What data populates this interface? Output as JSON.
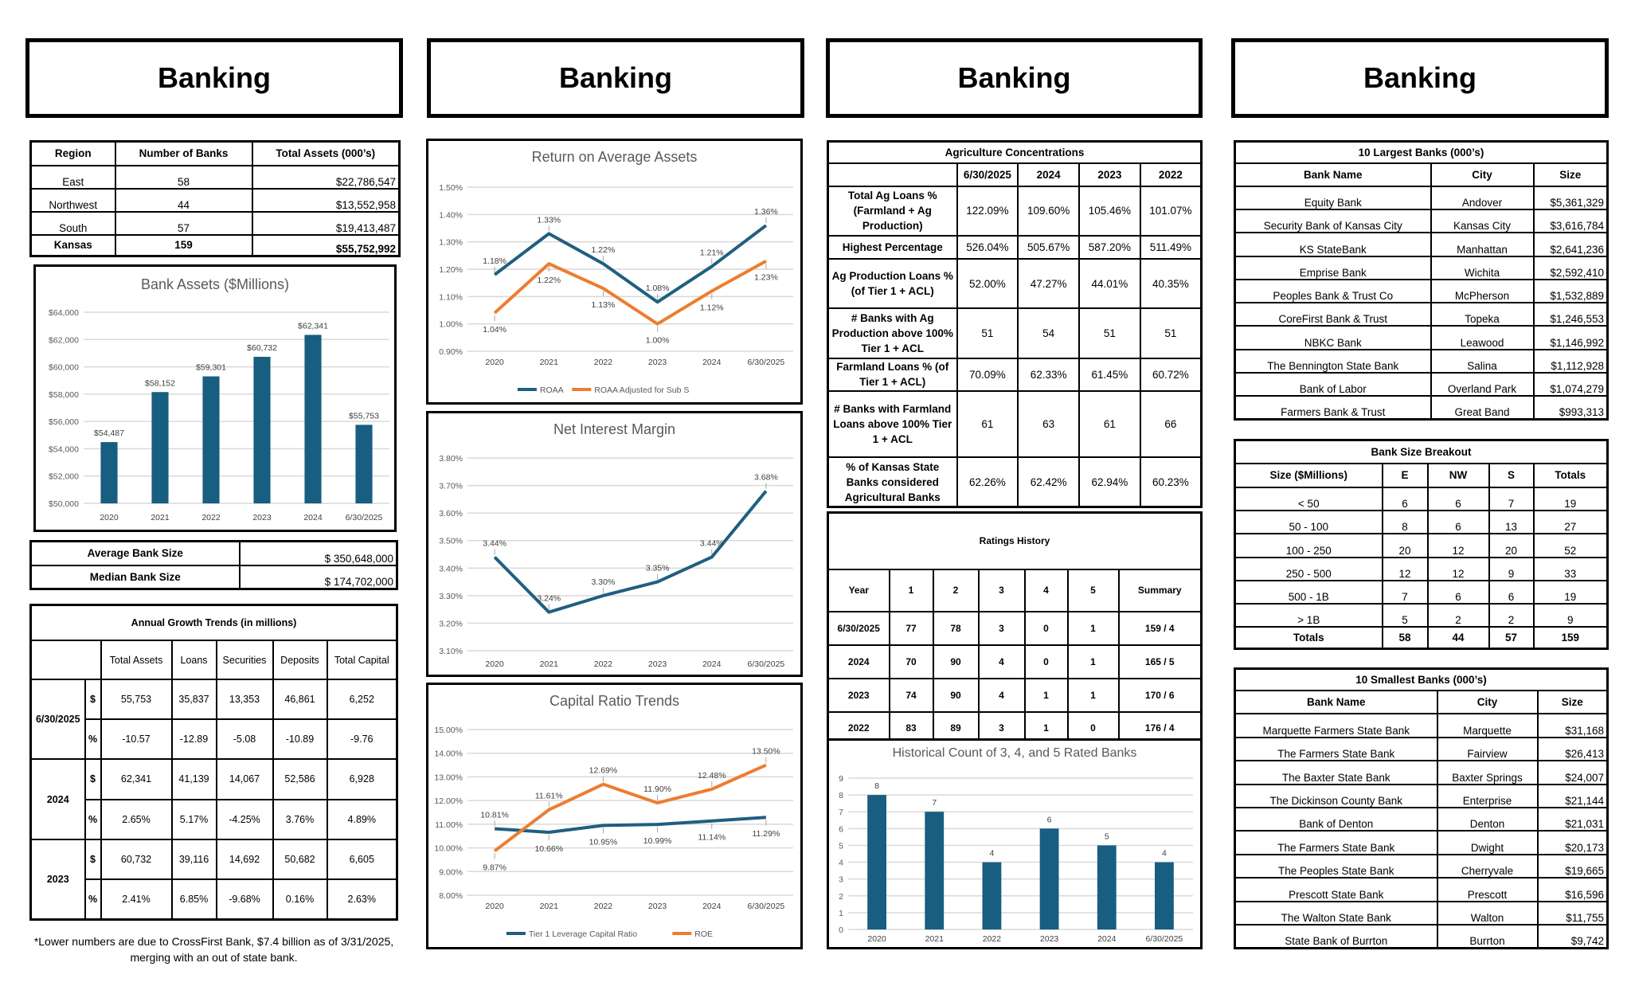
{
  "headers": [
    "Banking",
    "Banking",
    "Banking",
    "Banking"
  ],
  "region_table": {
    "columns": [
      "Region",
      "Number of Banks",
      "Total Assets (000’s)"
    ],
    "rows": [
      [
        "East",
        "58",
        "$22,786,547"
      ],
      [
        "Northwest",
        "44",
        "$13,552,958"
      ],
      [
        "South",
        "57",
        "$19,413,487"
      ]
    ],
    "total": [
      "Kansas",
      "159",
      "$55,752,992"
    ]
  },
  "bank_size_summary": {
    "average_label": "Average Bank Size",
    "average_value": "$ 350,648,000",
    "median_label": "Median Bank Size",
    "median_value": "$ 174,702,000"
  },
  "growth_trends": {
    "title": "Annual Growth Trends (in millions)",
    "columns": [
      "Total Assets",
      "Loans",
      "Securities",
      "Deposits",
      "Total Capital"
    ],
    "dollar_symbol": "$",
    "pct_symbol": "%",
    "periods": [
      {
        "label": "6/30/2025",
        "dollars": [
          "55,753",
          "35,837",
          "13,353",
          "46,861",
          "6,252"
        ],
        "percent": [
          "-10.57",
          "-12.89",
          "-5.08",
          "-10.89",
          "-9.76"
        ]
      },
      {
        "label": "2024",
        "dollars": [
          "62,341",
          "41,139",
          "14,067",
          "52,586",
          "6,928"
        ],
        "percent": [
          "2.65%",
          "5.17%",
          "-4.25%",
          "3.76%",
          "4.89%"
        ]
      },
      {
        "label": "2023",
        "dollars": [
          "60,732",
          "39,116",
          "14,692",
          "50,682",
          "6,605"
        ],
        "percent": [
          "2.41%",
          "6.85%",
          "-9.68%",
          "0.16%",
          "2.63%"
        ]
      }
    ]
  },
  "footnote": "*Lower numbers are due to CrossFirst Bank, $7.4 billion as of 3/31/2025, merging with an out of state bank.",
  "ag_concentrations": {
    "title": "Agriculture Concentrations",
    "columns": [
      "",
      "6/30/2025",
      "2024",
      "2023",
      "2022"
    ],
    "rows": [
      {
        "label": "Total Ag Loans % (Farmland + Ag Production)",
        "values": [
          "122.09%",
          "109.60%",
          "105.46%",
          "101.07%"
        ]
      },
      {
        "label": "Highest Percentage",
        "values": [
          "526.04%",
          "505.67%",
          "587.20%",
          "511.49%"
        ]
      },
      {
        "label": "Ag Production Loans % (of Tier 1 + ACL)",
        "values": [
          "52.00%",
          "47.27%",
          "44.01%",
          "40.35%"
        ]
      },
      {
        "label": "# Banks with Ag Production above 100% Tier 1 + ACL",
        "values": [
          "51",
          "54",
          "51",
          "51"
        ]
      },
      {
        "label": "Farmland Loans % (of Tier 1 + ACL)",
        "values": [
          "70.09%",
          "62.33%",
          "61.45%",
          "60.72%"
        ]
      },
      {
        "label": "# Banks with Farmland Loans above 100% Tier 1 + ACL",
        "values": [
          "61",
          "63",
          "61",
          "66"
        ]
      },
      {
        "label": "% of Kansas State Banks considered Agricultural Banks",
        "values": [
          "62.26%",
          "62.42%",
          "62.94%",
          "60.23%"
        ]
      }
    ]
  },
  "ratings_history": {
    "title": "Ratings History",
    "columns": [
      "Year",
      "1",
      "2",
      "3",
      "4",
      "5",
      "Summary"
    ],
    "rows": [
      [
        "6/30/2025",
        "77",
        "78",
        "3",
        "0",
        "1",
        "159 / 4"
      ],
      [
        "2024",
        "70",
        "90",
        "4",
        "0",
        "1",
        "165 / 5"
      ],
      [
        "2023",
        "74",
        "90",
        "4",
        "1",
        "1",
        "170 / 6"
      ],
      [
        "2022",
        "83",
        "89",
        "3",
        "1",
        "0",
        "176 / 4"
      ]
    ]
  },
  "largest_banks": {
    "title": "10 Largest Banks (000’s)",
    "columns": [
      "Bank Name",
      "City",
      "Size"
    ],
    "rows": [
      [
        "Equity Bank",
        "Andover",
        "$5,361,329"
      ],
      [
        "Security Bank of Kansas City",
        "Kansas City",
        "$3,616,784"
      ],
      [
        "KS StateBank",
        "Manhattan",
        "$2,641,236"
      ],
      [
        "Emprise Bank",
        "Wichita",
        "$2,592,410"
      ],
      [
        "Peoples Bank & Trust Co",
        "McPherson",
        "$1,532,889"
      ],
      [
        "CoreFirst Bank & Trust",
        "Topeka",
        "$1,246,553"
      ],
      [
        "NBKC Bank",
        "Leawood",
        "$1,146,992"
      ],
      [
        "The Bennington State Bank",
        "Salina",
        "$1,112,928"
      ],
      [
        "Bank of Labor",
        "Overland Park",
        "$1,074,279"
      ],
      [
        "Farmers Bank & Trust",
        "Great Band",
        "$993,313"
      ]
    ]
  },
  "size_breakout": {
    "title": "Bank Size Breakout",
    "columns": [
      "Size ($Millions)",
      "E",
      "NW",
      "S",
      "Totals"
    ],
    "rows": [
      [
        "< 50",
        "6",
        "6",
        "7",
        "19"
      ],
      [
        "50 - 100",
        "8",
        "6",
        "13",
        "27"
      ],
      [
        "100 - 250",
        "20",
        "12",
        "20",
        "52"
      ],
      [
        "250 - 500",
        "12",
        "12",
        "9",
        "33"
      ],
      [
        "500 - 1B",
        "7",
        "6",
        "6",
        "19"
      ],
      [
        "> 1B",
        "5",
        "2",
        "2",
        "9"
      ]
    ],
    "totals": [
      "Totals",
      "58",
      "44",
      "57",
      "159"
    ]
  },
  "smallest_banks": {
    "title": "10 Smallest Banks (000’s)",
    "columns": [
      "Bank Name",
      "City",
      "Size"
    ],
    "rows": [
      [
        "Marquette Farmers State Bank",
        "Marquette",
        "$31,168"
      ],
      [
        "The Farmers State Bank",
        "Fairview",
        "$26,413"
      ],
      [
        "The Baxter State Bank",
        "Baxter Springs",
        "$24,007"
      ],
      [
        "The Dickinson County Bank",
        "Enterprise",
        "$21,144"
      ],
      [
        "Bank of Denton",
        "Denton",
        "$21,031"
      ],
      [
        "The Farmers State Bank",
        "Dwight",
        "$20,173"
      ],
      [
        "The Peoples State Bank",
        "Cherryvale",
        "$19,665"
      ],
      [
        "Prescott State Bank",
        "Prescott",
        "$16,596"
      ],
      [
        "The Walton State Bank",
        "Walton",
        "$11,755"
      ],
      [
        "State Bank of Burrton",
        "Burrton",
        "$9,742"
      ]
    ]
  },
  "chart_data": [
    {
      "type": "bar",
      "title": "Bank Assets ($Millions)",
      "categories": [
        "2020",
        "2021",
        "2022",
        "2023",
        "2024",
        "6/30/2025"
      ],
      "values": [
        54487,
        58152,
        59301,
        60732,
        62341,
        55753
      ],
      "data_labels": [
        "$54,487",
        "$58,152",
        "$59,301",
        "$60,732",
        "$62,341",
        "$55,753"
      ],
      "ylim": [
        50000,
        64000
      ],
      "y_tick_labels": [
        "$50,000",
        "$52,000",
        "$54,000",
        "$56,000",
        "$58,000",
        "$60,000",
        "$62,000",
        "$64,000"
      ],
      "grid": true,
      "color": "#175e80"
    },
    {
      "type": "line",
      "title": "Return on Average Assets",
      "categories": [
        "2020",
        "2021",
        "2022",
        "2023",
        "2024",
        "6/30/2025"
      ],
      "ylim": [
        0.9,
        1.5
      ],
      "y_tick_labels": [
        "0.90%",
        "1.00%",
        "1.10%",
        "1.20%",
        "1.30%",
        "1.40%",
        "1.50%"
      ],
      "grid": true,
      "legend": "bottom",
      "series": [
        {
          "name": "ROAA",
          "values": [
            1.18,
            1.33,
            1.22,
            1.08,
            1.21,
            1.36
          ],
          "data_labels": [
            "1.18%",
            "1.33%",
            "1.22%",
            "1.08%",
            "1.21%",
            "1.36%"
          ],
          "color": "#1f5f80"
        },
        {
          "name": "ROAA Adjusted for Sub S",
          "values": [
            1.04,
            1.22,
            1.13,
            1.0,
            1.12,
            1.23
          ],
          "data_labels": [
            "1.04%",
            "1.22%",
            "1.13%",
            "1.00%",
            "1.12%",
            "1.23%"
          ],
          "color": "#ed7d31"
        }
      ]
    },
    {
      "type": "line",
      "title": "Net Interest Margin",
      "categories": [
        "2020",
        "2021",
        "2022",
        "2023",
        "2024",
        "6/30/2025"
      ],
      "ylim": [
        3.1,
        3.8
      ],
      "y_tick_labels": [
        "3.10%",
        "3.20%",
        "3.30%",
        "3.40%",
        "3.50%",
        "3.60%",
        "3.70%",
        "3.80%"
      ],
      "grid": true,
      "series": [
        {
          "values": [
            3.44,
            3.24,
            3.3,
            3.35,
            3.44,
            3.68
          ],
          "data_labels": [
            "3.44%",
            "3.24%",
            "3.30%",
            "3.35%",
            "3.44%",
            "3.68%"
          ],
          "color": "#1f5f80"
        }
      ]
    },
    {
      "type": "line",
      "title": "Capital Ratio Trends",
      "categories": [
        "2020",
        "2021",
        "2022",
        "2023",
        "2024",
        "6/30/2025"
      ],
      "ylim": [
        8,
        15
      ],
      "y_tick_labels": [
        "8.00%",
        "9.00%",
        "10.00%",
        "11.00%",
        "12.00%",
        "13.00%",
        "14.00%",
        "15.00%"
      ],
      "grid": true,
      "legend": "bottom",
      "series": [
        {
          "name": "Tier 1 Leverage Capital Ratio",
          "values": [
            10.81,
            10.66,
            10.95,
            10.99,
            11.14,
            11.29
          ],
          "data_labels": [
            "10.81%",
            "10.66%",
            "10.95%",
            "10.99%",
            "11.14%",
            "11.29%"
          ],
          "color": "#1f5f80"
        },
        {
          "name": "ROE",
          "values": [
            9.87,
            11.61,
            12.69,
            11.9,
            12.48,
            13.5
          ],
          "data_labels": [
            "9.87%",
            "11.61%",
            "12.69%",
            "11.90%",
            "12.48%",
            "13.50%"
          ],
          "color": "#ed7d31"
        }
      ]
    },
    {
      "type": "bar",
      "title": "Historical Count of 3, 4, and 5 Rated Banks",
      "categories": [
        "2020",
        "2021",
        "2022",
        "2023",
        "2024",
        "6/30/2025"
      ],
      "values": [
        8,
        7,
        4,
        6,
        5,
        4
      ],
      "data_labels": [
        "8",
        "7",
        "4",
        "6",
        "5",
        "4"
      ],
      "ylim": [
        0,
        9
      ],
      "y_tick_labels": [
        "0",
        "1",
        "2",
        "3",
        "4",
        "5",
        "6",
        "7",
        "8",
        "9"
      ],
      "grid": true,
      "color": "#175e80"
    }
  ]
}
